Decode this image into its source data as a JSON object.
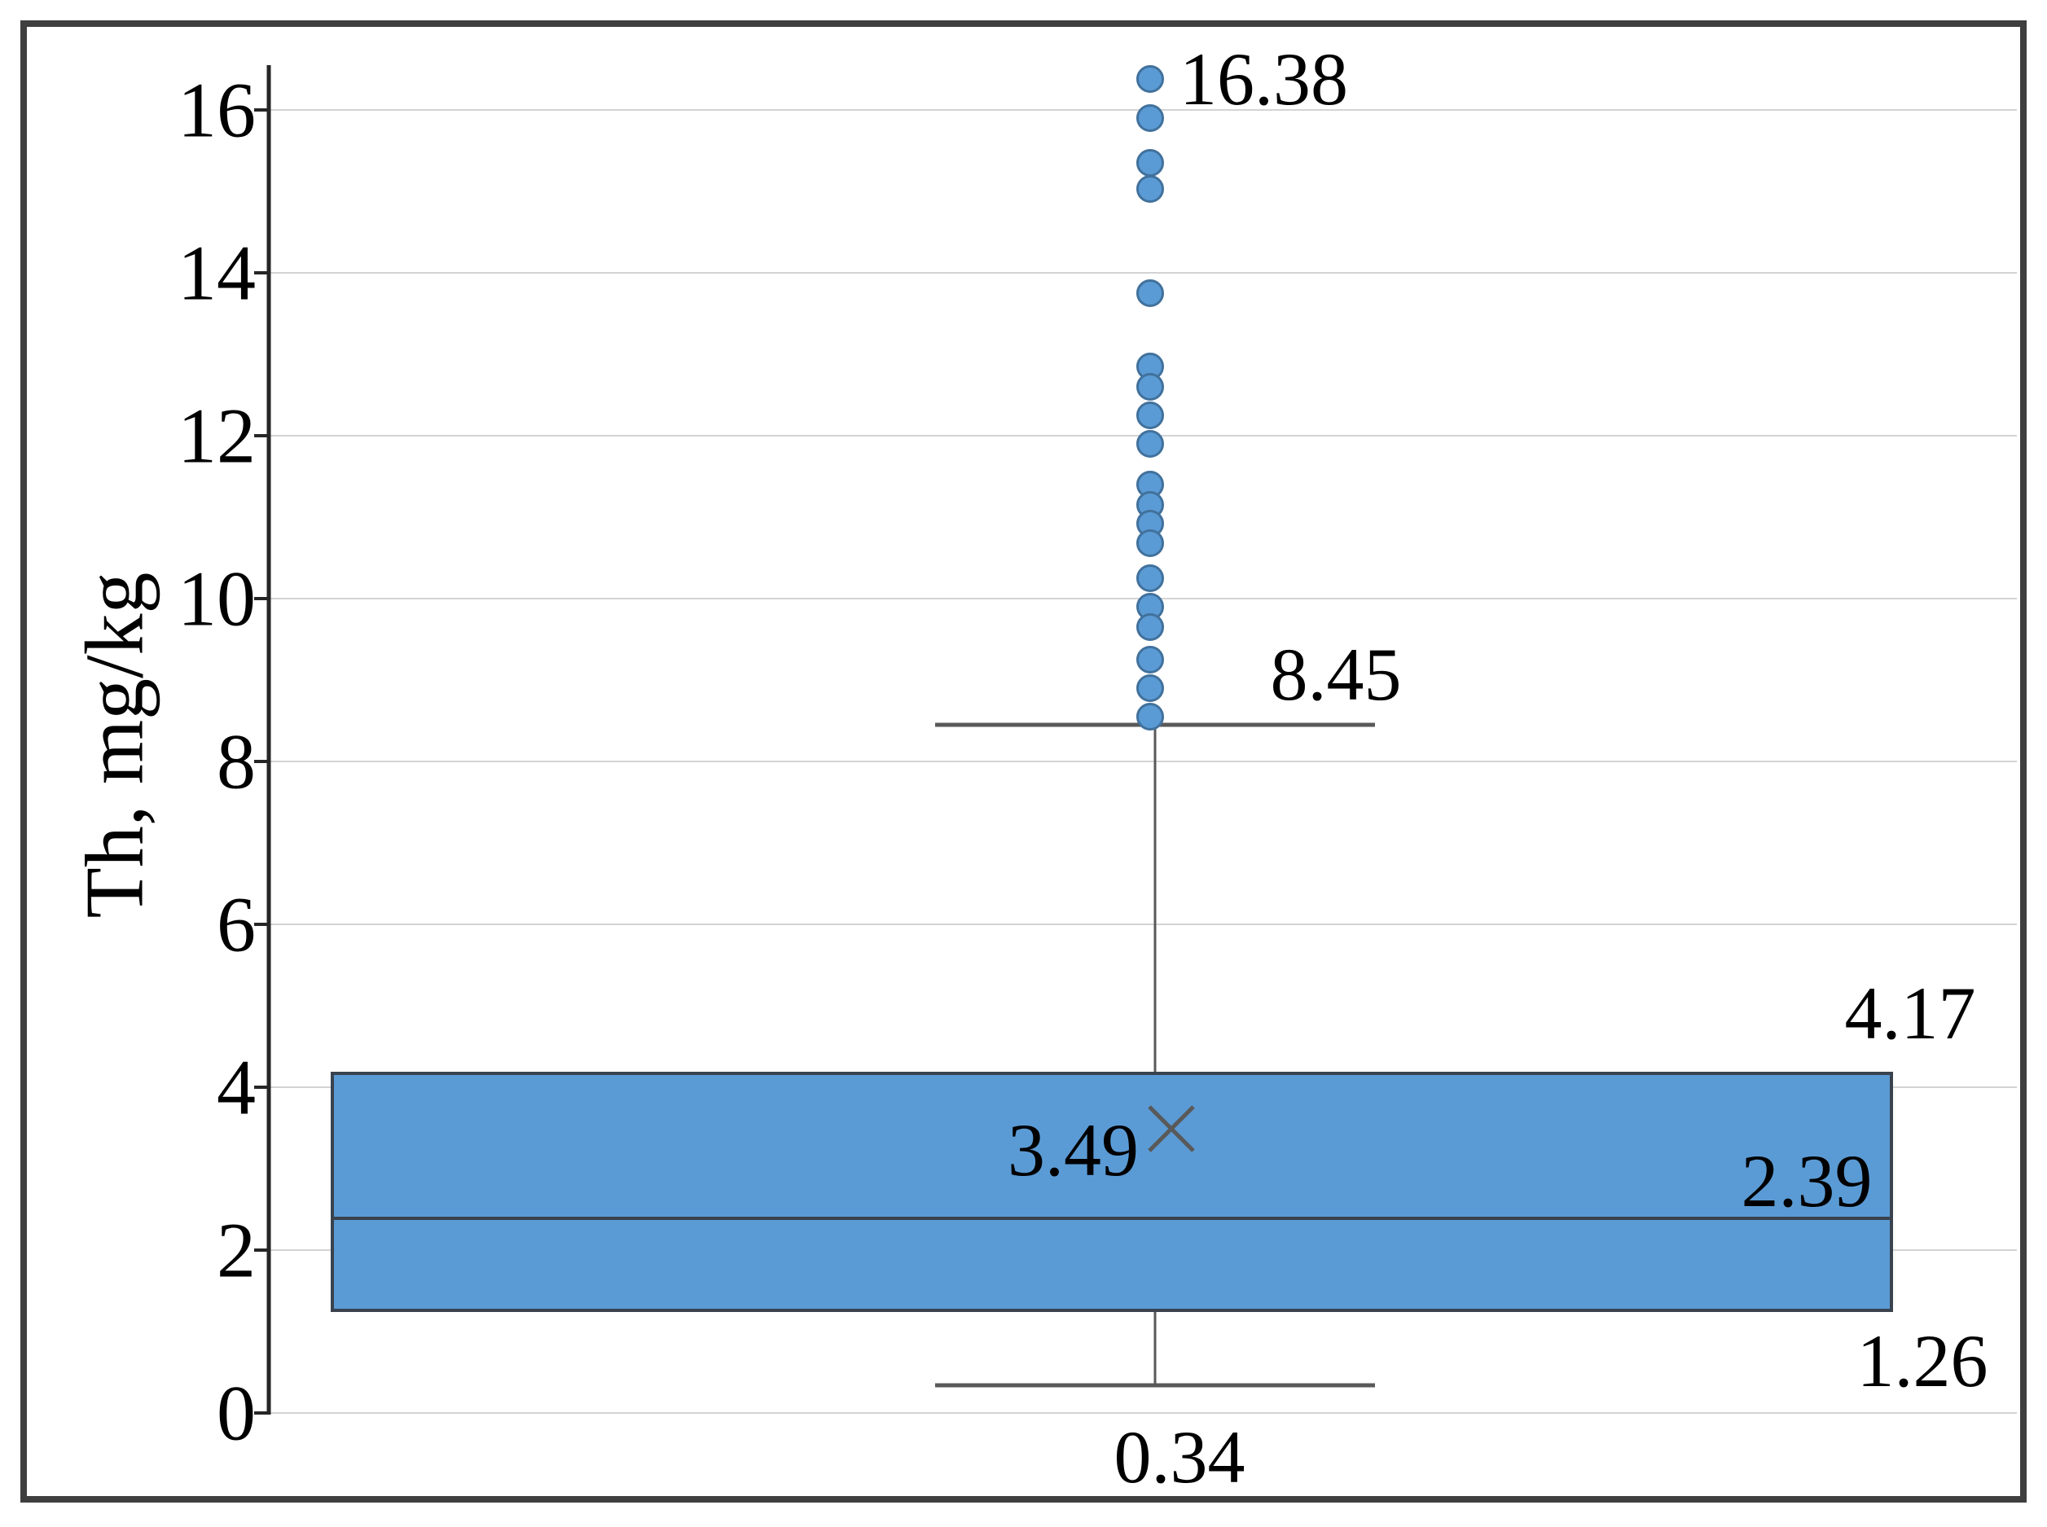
{
  "chart_data": {
    "type": "boxplot",
    "title": "",
    "xlabel": "",
    "ylabel": "Th, mg/kg",
    "ylim": [
      0,
      16.55
    ],
    "yticks": [
      0,
      2,
      4,
      6,
      8,
      10,
      12,
      14,
      16
    ],
    "grid": "horizontal",
    "legend": "none",
    "series": [
      {
        "name": "Th",
        "whisker_low": 0.34,
        "q1": 1.26,
        "median": 2.39,
        "mean": 3.49,
        "q3": 4.17,
        "whisker_high": 8.45,
        "outliers": [
          16.38,
          15.9,
          15.35,
          15.03,
          13.75,
          12.85,
          12.6,
          12.25,
          11.9,
          11.4,
          11.15,
          10.92,
          10.68,
          10.25,
          9.9,
          9.65,
          9.25,
          8.9,
          8.55
        ]
      }
    ],
    "labels": {
      "max_outlier": "16.38",
      "whisker_high": "8.45",
      "q3": "4.17",
      "mean": "3.49",
      "median": "2.39",
      "q1": "1.26",
      "whisker_low": "0.34"
    },
    "colors": {
      "box_fill": "#5B9BD5",
      "box_border": "#39424E",
      "median_line": "#39424E",
      "whisker_line": "#595959",
      "mean_marker": "#595959",
      "outlier_fill": "#5B9BD5",
      "outlier_stroke": "#41719C",
      "gridline": "#D3D3D3",
      "axis_line": "#262626",
      "figure_border": "#3F3F3F",
      "text": "#000000"
    }
  }
}
